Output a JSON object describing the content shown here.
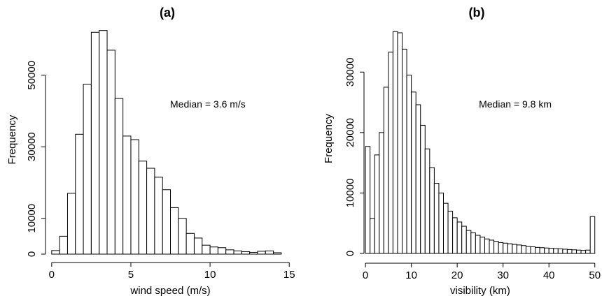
{
  "chart_data": [
    {
      "type": "histogram",
      "title": "(a)",
      "xlabel": "wind speed (m/s)",
      "ylabel": "Frequency",
      "annotation": "Median = 3.6 m/s",
      "color": "#ffffff",
      "edgecolor": "#000000",
      "bins": [
        0,
        0.5,
        1,
        1.5,
        2,
        2.5,
        3,
        3.5,
        4,
        4.5,
        5,
        5.5,
        6,
        6.5,
        7,
        7.5,
        8,
        8.5,
        9,
        9.5,
        10,
        10.5,
        11,
        11.5,
        12,
        12.5,
        13,
        13.5,
        14,
        14.5
      ],
      "values": [
        1000,
        5000,
        17000,
        33500,
        47500,
        62000,
        62500,
        57000,
        43500,
        33000,
        32000,
        26000,
        24000,
        21500,
        18000,
        13000,
        10000,
        5800,
        4500,
        2500,
        2000,
        1800,
        1200,
        900,
        700,
        500,
        800,
        900,
        400
      ],
      "xlim": [
        -0.7,
        15.3
      ],
      "ylim": [
        0,
        64000
      ],
      "xticks": [
        0,
        5,
        10,
        15
      ],
      "yticks": [
        0,
        10000,
        30000,
        50000
      ]
    },
    {
      "type": "histogram",
      "title": "(b)",
      "xlabel": "visibility (km)",
      "ylabel": "Frequency",
      "annotation": "Median = 9.8 km",
      "color": "#ffffff",
      "edgecolor": "#000000",
      "bins": [
        0,
        1,
        2,
        3,
        4,
        5,
        6,
        7,
        8,
        9,
        10,
        11,
        12,
        13,
        14,
        15,
        16,
        17,
        18,
        19,
        20,
        21,
        22,
        23,
        24,
        25,
        26,
        27,
        28,
        29,
        30,
        31,
        32,
        33,
        34,
        35,
        36,
        37,
        38,
        39,
        40,
        41,
        42,
        43,
        44,
        45,
        46,
        47,
        48,
        49,
        50
      ],
      "values": [
        17700,
        5800,
        16300,
        20000,
        27500,
        33300,
        36700,
        36500,
        33800,
        29500,
        26700,
        24600,
        21200,
        17300,
        14200,
        11600,
        10000,
        8300,
        7000,
        5900,
        5200,
        4500,
        3800,
        3400,
        3000,
        2700,
        2400,
        2200,
        2000,
        1800,
        1700,
        1600,
        1500,
        1400,
        1300,
        1150,
        1100,
        1000,
        950,
        900,
        850,
        800,
        750,
        700,
        650,
        600,
        550,
        500,
        550,
        6100
      ],
      "xlim": [
        -2,
        50.5
      ],
      "ylim": [
        0,
        38000
      ],
      "xticks": [
        0,
        10,
        20,
        30,
        40,
        50
      ],
      "yticks": [
        0,
        10000,
        20000,
        30000
      ]
    }
  ]
}
